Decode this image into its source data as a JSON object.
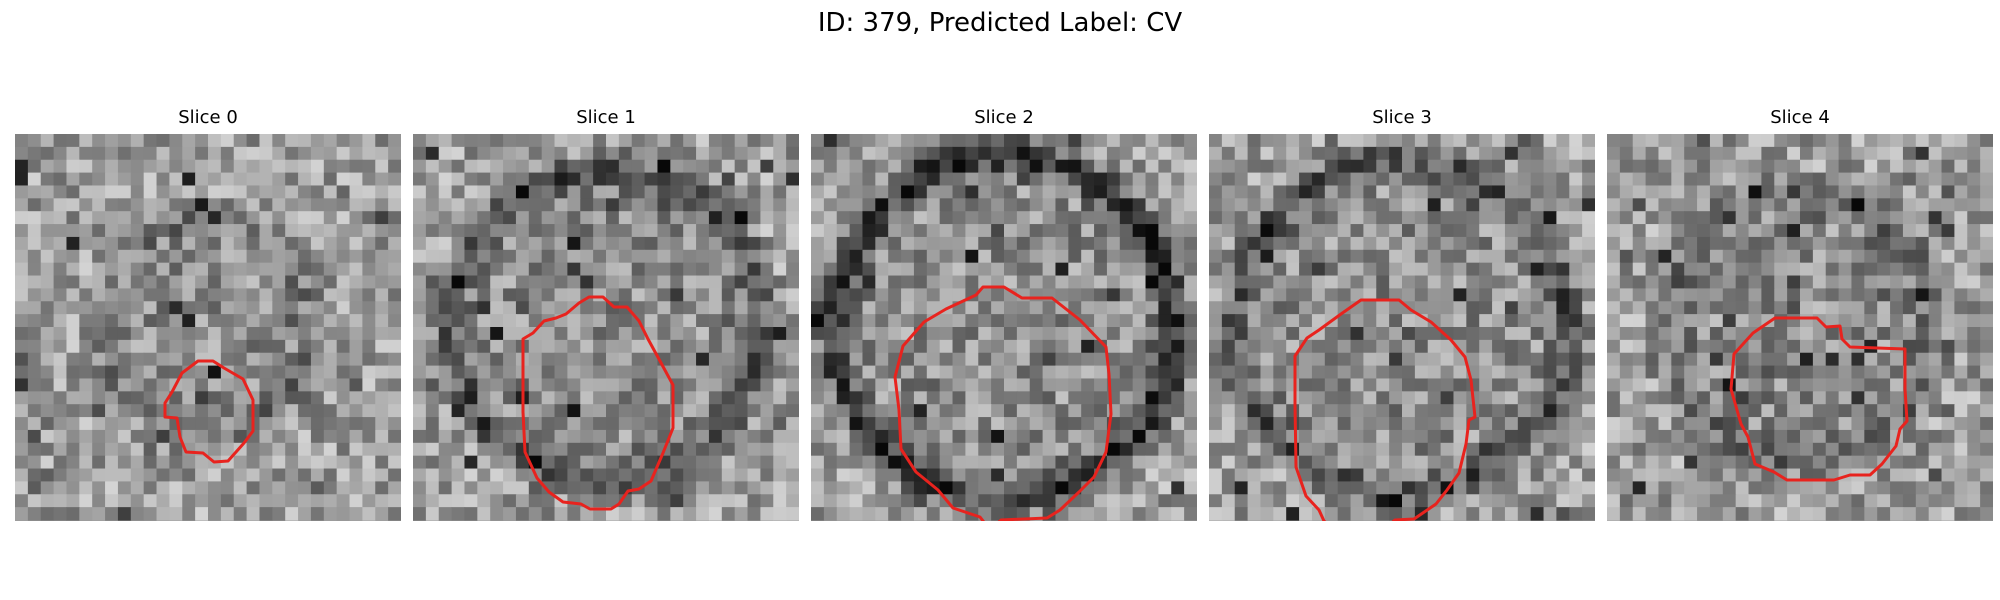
{
  "figure": {
    "title": "ID: 379, Predicted Label: CV"
  },
  "style": {
    "background": "#ffffff",
    "contour_color": "#e8231e",
    "colormap": "gray"
  },
  "panels": [
    {
      "title": "Slice 0",
      "seed": 11,
      "darkRingRadius": 0.27,
      "darkRingStrength": 0.28
    },
    {
      "title": "Slice 1",
      "seed": 23,
      "darkRingRadius": 0.4,
      "darkRingStrength": 0.55
    },
    {
      "title": "Slice 2",
      "seed": 37,
      "darkRingRadius": 0.44,
      "darkRingStrength": 0.75
    },
    {
      "title": "Slice 3",
      "seed": 41,
      "darkRingRadius": 0.43,
      "darkRingStrength": 0.55
    },
    {
      "title": "Slice 4",
      "seed": 59,
      "darkRingRadius": 0.34,
      "darkRingStrength": 0.4
    }
  ]
}
